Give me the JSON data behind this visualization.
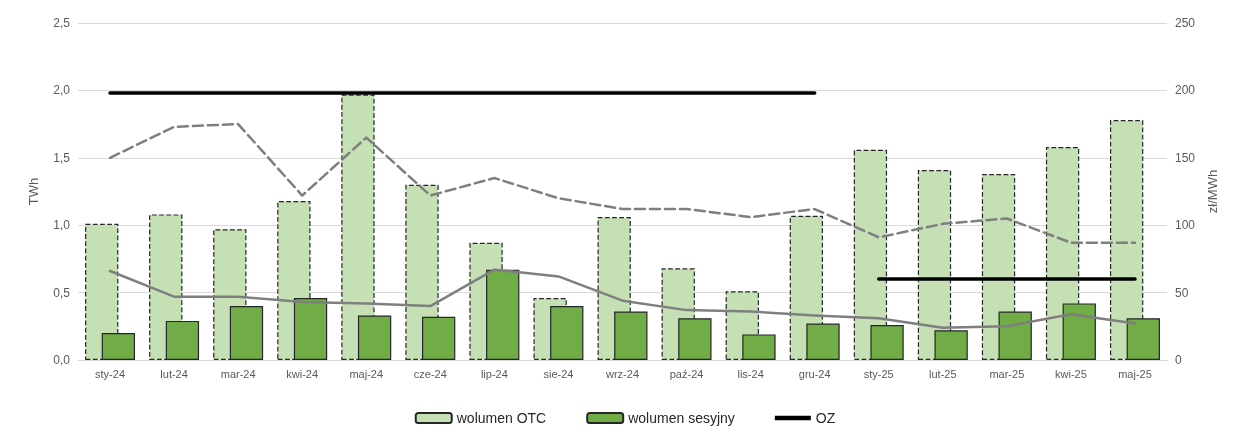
{
  "chart_data": {
    "type": "bar",
    "categories": [
      "sty-24",
      "lut-24",
      "mar-24",
      "kwi-24",
      "maj-24",
      "cze-24",
      "lip-24",
      "sie-24",
      "wrz-24",
      "paź-24",
      "lis-24",
      "gru-24",
      "sty-25",
      "lut-25",
      "mar-25",
      "kwi-25",
      "maj-25"
    ],
    "series": [
      {
        "name": "wolumen OTC",
        "color": "#c5e0b4",
        "line_style": "dashed",
        "values": [
          1.01,
          1.08,
          0.97,
          1.18,
          1.97,
          1.3,
          0.87,
          0.46,
          1.06,
          0.68,
          0.51,
          1.07,
          1.56,
          1.41,
          1.38,
          1.58,
          1.78
        ]
      },
      {
        "name": "wolumen sesyjny",
        "color": "#70ad47",
        "line_style": "solid",
        "values": [
          0.2,
          0.29,
          0.4,
          0.46,
          0.33,
          0.32,
          0.67,
          0.4,
          0.36,
          0.31,
          0.19,
          0.27,
          0.26,
          0.22,
          0.36,
          0.42,
          0.31
        ]
      },
      {
        "type": "line",
        "axis": "y2",
        "color": "#7f7f7f",
        "line_style": "solid",
        "values": [
          66,
          47,
          47,
          43,
          42,
          40,
          67,
          62,
          44,
          37,
          36,
          33,
          31,
          24,
          25,
          34,
          27
        ]
      },
      {
        "type": "line",
        "axis": "y2",
        "color": "#7f7f7f",
        "line_style": "dashed",
        "values": [
          150,
          173,
          175,
          122,
          165,
          122,
          135,
          120,
          112,
          112,
          106,
          112,
          91,
          101,
          105,
          87,
          87
        ]
      },
      {
        "name": "OZ",
        "type": "line",
        "axis": "y2",
        "color": "#000000",
        "line_style": "solid",
        "values": [
          198,
          198,
          198,
          198,
          198,
          198,
          198,
          198,
          198,
          198,
          198,
          198,
          null,
          null,
          null,
          null,
          null
        ]
      },
      {
        "type": "line",
        "axis": "y2",
        "color": "#000000",
        "line_style": "solid",
        "values": [
          null,
          null,
          null,
          null,
          null,
          null,
          null,
          null,
          null,
          null,
          null,
          null,
          60,
          60,
          60,
          60,
          60
        ]
      }
    ],
    "ylabel": "TWh",
    "y2label": "zł/MWh",
    "ylim": [
      0,
      2.5
    ],
    "yticks": [
      {
        "value": 0,
        "label": "0,0"
      },
      {
        "value": 0.5,
        "label": "0,5"
      },
      {
        "value": 1,
        "label": "1,0"
      },
      {
        "value": 1.5,
        "label": "1,5"
      },
      {
        "value": 2,
        "label": "2,0"
      },
      {
        "value": 2.5,
        "label": "2,5"
      }
    ],
    "y2lim": [
      0,
      250
    ],
    "y2ticks": [
      0,
      50,
      100,
      150,
      200,
      250
    ],
    "grid": "y",
    "legend": "bottom",
    "marker": "none"
  }
}
